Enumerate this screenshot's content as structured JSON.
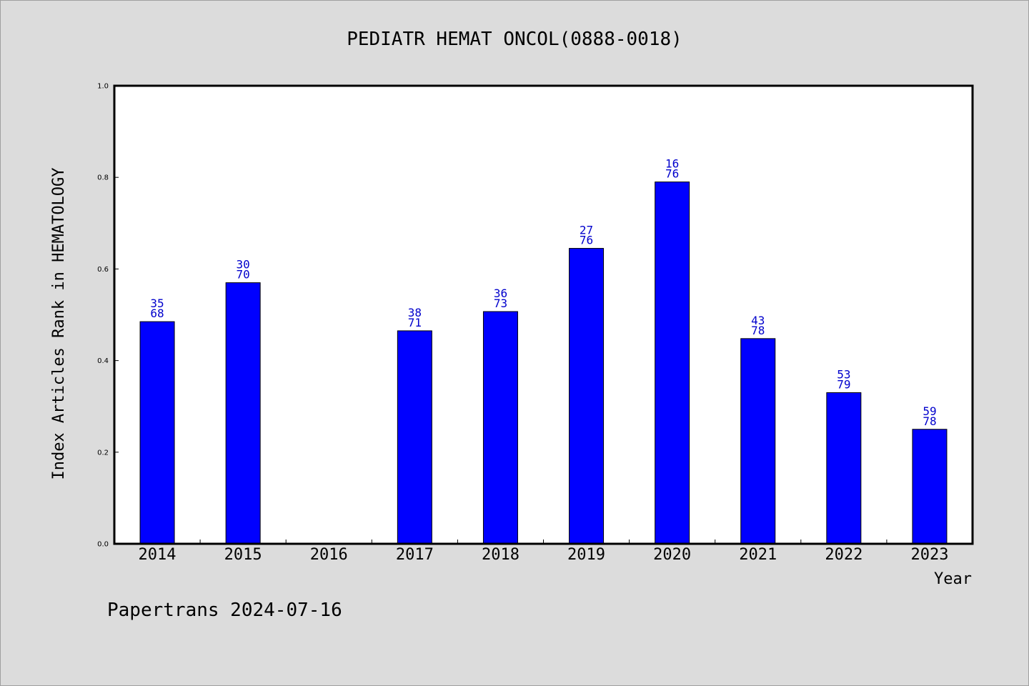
{
  "chart_data": {
    "type": "bar",
    "title": "PEDIATR HEMAT ONCOL(0888-0018)",
    "xlabel": "Year",
    "ylabel": "Index Articles Rank in HEMATOLOGY",
    "ylim": [
      0.0,
      1.0
    ],
    "yticks": [
      "0.0",
      "0.2",
      "0.4",
      "0.6",
      "0.8",
      "1.0"
    ],
    "categories": [
      "2014",
      "2015",
      "2016",
      "2017",
      "2018",
      "2019",
      "2020",
      "2021",
      "2022",
      "2023"
    ],
    "values": [
      0.485,
      0.57,
      null,
      0.465,
      0.507,
      0.645,
      0.79,
      0.448,
      0.33,
      0.25
    ],
    "rank_labels": [
      "35",
      "30",
      "",
      "38",
      "36",
      "27",
      "16",
      "43",
      "53",
      "59"
    ],
    "total_labels": [
      "68",
      "70",
      "",
      "71",
      "73",
      "76",
      "76",
      "78",
      "79",
      "78"
    ],
    "bar_color": "#0000ff",
    "label_color": "#0000cc",
    "grid": false,
    "legend": "none"
  },
  "footer": "Papertrans 2024-07-16"
}
